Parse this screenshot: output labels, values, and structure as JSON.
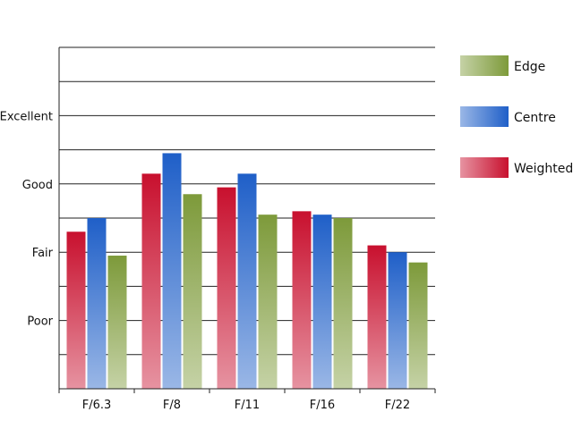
{
  "chart_data": {
    "type": "bar",
    "categories": [
      "F/6.3",
      "F/8",
      "F/11",
      "F/16",
      "F/22"
    ],
    "series": [
      {
        "name": "Weighted",
        "color": "#c8102e",
        "values": [
          2.3,
          3.15,
          2.95,
          2.6,
          2.1
        ]
      },
      {
        "name": "Centre",
        "color": "#1f5fc8",
        "values": [
          2.5,
          3.45,
          3.15,
          2.55,
          2.0
        ]
      },
      {
        "name": "Edge",
        "color": "#7d9a3a",
        "values": [
          1.95,
          2.85,
          2.55,
          2.5,
          1.85
        ]
      }
    ],
    "y_ticks": [
      {
        "value": 1,
        "label": "Poor"
      },
      {
        "value": 2,
        "label": "Fair"
      },
      {
        "value": 3,
        "label": "Good"
      },
      {
        "value": 4,
        "label": "Excellent"
      }
    ],
    "ylim": [
      0,
      5
    ],
    "grid": true,
    "legend": {
      "placement": "right",
      "order": [
        "Edge",
        "Centre",
        "Weighted"
      ]
    },
    "title": "",
    "xlabel": "",
    "ylabel": ""
  }
}
